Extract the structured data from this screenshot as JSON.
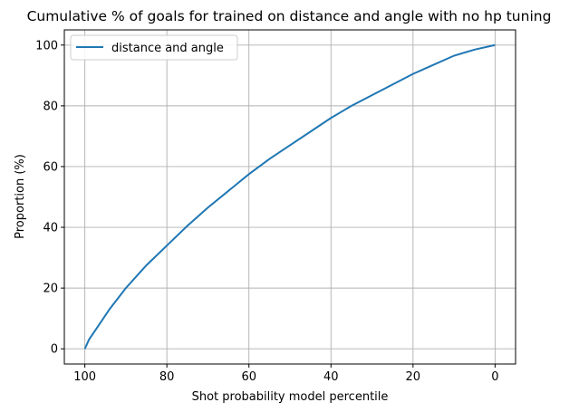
{
  "chart_data": {
    "type": "line",
    "title": "Cumulative % of goals for trained on distance and angle with no hp tuning",
    "xlabel": "Shot probability model percentile",
    "ylabel": "Proportion (%)",
    "xlim": [
      105,
      -5
    ],
    "ylim": [
      -5,
      105
    ],
    "x_inverted": true,
    "xticks": [
      100,
      80,
      60,
      40,
      20,
      0
    ],
    "yticks": [
      0,
      20,
      40,
      60,
      80,
      100
    ],
    "grid": true,
    "legend_position": "upper-left",
    "series": [
      {
        "name": "distance and angle",
        "color": "#1f77b4",
        "x": [
          100,
          99,
          98,
          96,
          94,
          92,
          90,
          88,
          85,
          80,
          75,
          70,
          65,
          60,
          55,
          50,
          45,
          40,
          35,
          30,
          25,
          20,
          15,
          10,
          5,
          0
        ],
        "y": [
          0,
          3,
          5,
          9,
          13,
          16.5,
          20,
          23,
          27.5,
          34,
          40.5,
          46.5,
          52,
          57.5,
          62.5,
          67,
          71.5,
          76,
          80,
          83.5,
          87,
          90.5,
          93.5,
          96.5,
          98.5,
          100
        ]
      }
    ]
  }
}
